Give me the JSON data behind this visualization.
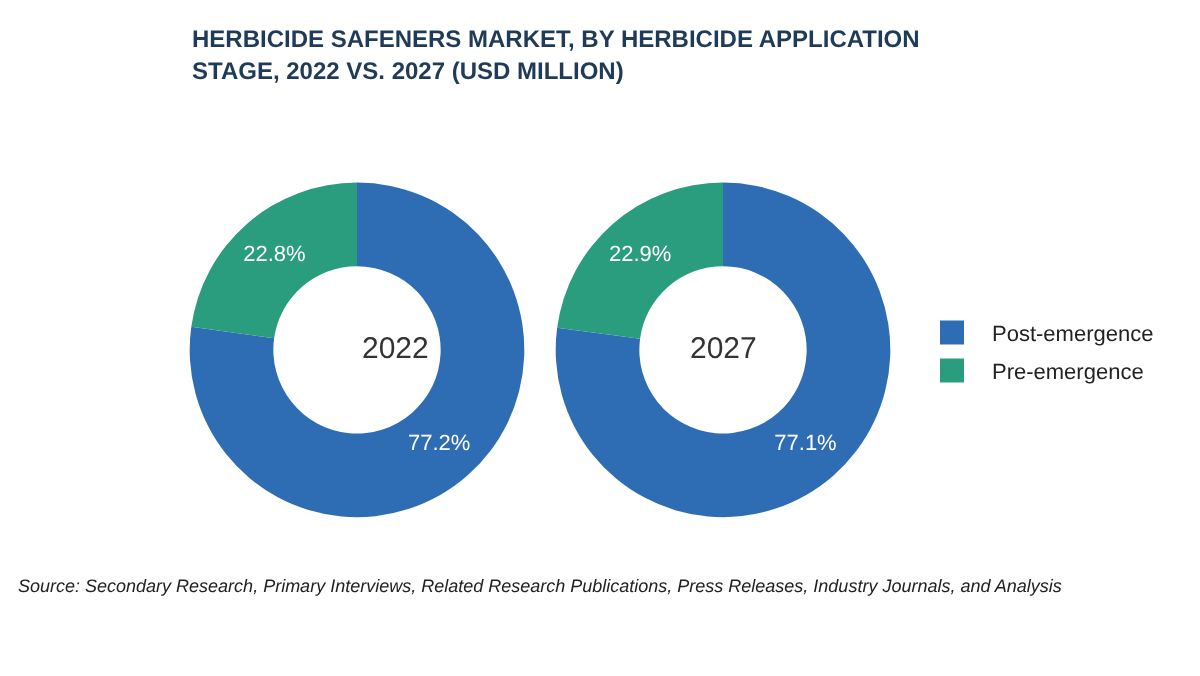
{
  "chart_data": [
    {
      "type": "donut",
      "title": "HERBICIDE SAFENERS MARKET, BY HERBICIDE APPLICATION STAGE, 2022 VS. 2027 (USD MILLION)",
      "categories": [
        "Post-emergence",
        "Pre-emergence"
      ],
      "values": [
        77.2,
        22.8
      ],
      "colors": [
        "#2e6db4",
        "#2a9d7f"
      ],
      "value_labels": [
        "77.2%",
        "22.8%"
      ],
      "legend": "right",
      "annotations": [
        "2022"
      ]
    },
    {
      "type": "donut",
      "categories": [
        null,
        null
      ],
      "values": [
        77.1,
        22.9
      ],
      "colors": [
        "#2e6db4",
        "#2a9d7f"
      ],
      "value_labels": [
        "77.1%",
        "22.9%"
      ],
      "annotations": [
        "2027",
        "Source: Secondary Research, Primary Interviews, Related Research Publications, Press Releases, Industry Journals, and Analysis"
      ]
    }
  ]
}
